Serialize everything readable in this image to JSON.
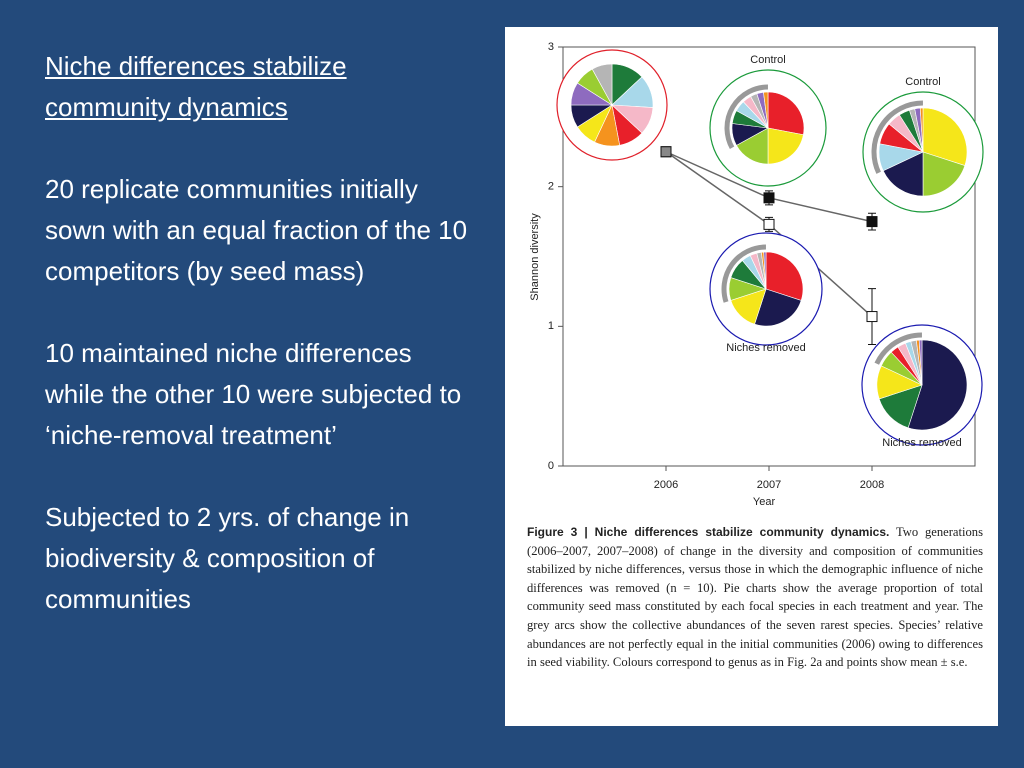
{
  "slide": {
    "title": "Niche differences stabilize community dynamics",
    "paragraphs": [
      "20 replicate communities initially sown with an equal fraction of the 10 competitors (by seed mass)",
      "10 maintained niche differences while the other 10 were subjected to ‘niche-removal treatment’",
      "Subjected to 2 yrs. of change in biodiversity & composition of communities"
    ]
  },
  "chart_data": {
    "type": "line",
    "xlabel": "Year",
    "ylabel": "Shannon diversity",
    "x": [
      2006,
      2007,
      2008
    ],
    "xlim": [
      2005,
      2009
    ],
    "xticks": [
      2006,
      2007,
      2008
    ],
    "ylim": [
      0,
      3
    ],
    "yticks": [
      0,
      1,
      2,
      3
    ],
    "series": [
      {
        "color": "#111111",
        "marker": "filled",
        "values": [
          2.25,
          1.92,
          1.75
        ],
        "errors": [
          null,
          0.05,
          0.06
        ]
      },
      {
        "color": "#111111",
        "marker": "open",
        "values": [
          2.25,
          1.73,
          1.07
        ],
        "errors": [
          null,
          0.05,
          0.2
        ]
      }
    ],
    "pie_colors": [
      "#e8202a",
      "#f5e61a",
      "#1b1a4f",
      "#9acd32",
      "#1e7b3a",
      "#a8d8ea",
      "#f5b8c8",
      "#b5b5b5",
      "#f5931e",
      "#8e6bbf"
    ],
    "pies": [
      {
        "ring": "#e0202a",
        "values": [
          10,
          9,
          9,
          8,
          13,
          13,
          11,
          8,
          10,
          9
        ]
      },
      {
        "label": "Control",
        "ring": "#1a9a3a",
        "values": [
          28,
          22,
          10,
          17,
          6,
          5,
          4,
          3,
          2,
          3
        ]
      },
      {
        "label": "Control",
        "ring": "#1a9a3a",
        "values": [
          8,
          30,
          18,
          20,
          4,
          10,
          5,
          2,
          1,
          2
        ]
      },
      {
        "label": "Niches removed",
        "ring": "#1a1ab0",
        "values": [
          30,
          15,
          25,
          10,
          9,
          4,
          3,
          2,
          1,
          1
        ]
      },
      {
        "label": "Niches removed",
        "ring": "#1a1ab0",
        "values": [
          3,
          12,
          55,
          6,
          15,
          2,
          3,
          2,
          1,
          1
        ]
      }
    ],
    "caption_title": "Figure 3 | Niche differences stabilize community dynamics.",
    "caption_text": "Two generations (2006–2007, 2007–2008) of change in the diversity and composition of communities stabilized by niche differences, versus those in which the demographic influence of niche differences was removed (n = 10). Pie charts show the average proportion of total community seed mass constituted by each focal species in each treatment and year. The grey arcs show the collective abundances of the seven rarest species. Species’ relative abundances are not perfectly equal in the initial communities (2006) owing to differences in seed viability. Colours correspond to genus as in Fig. 2a and points show mean ± s.e."
  }
}
